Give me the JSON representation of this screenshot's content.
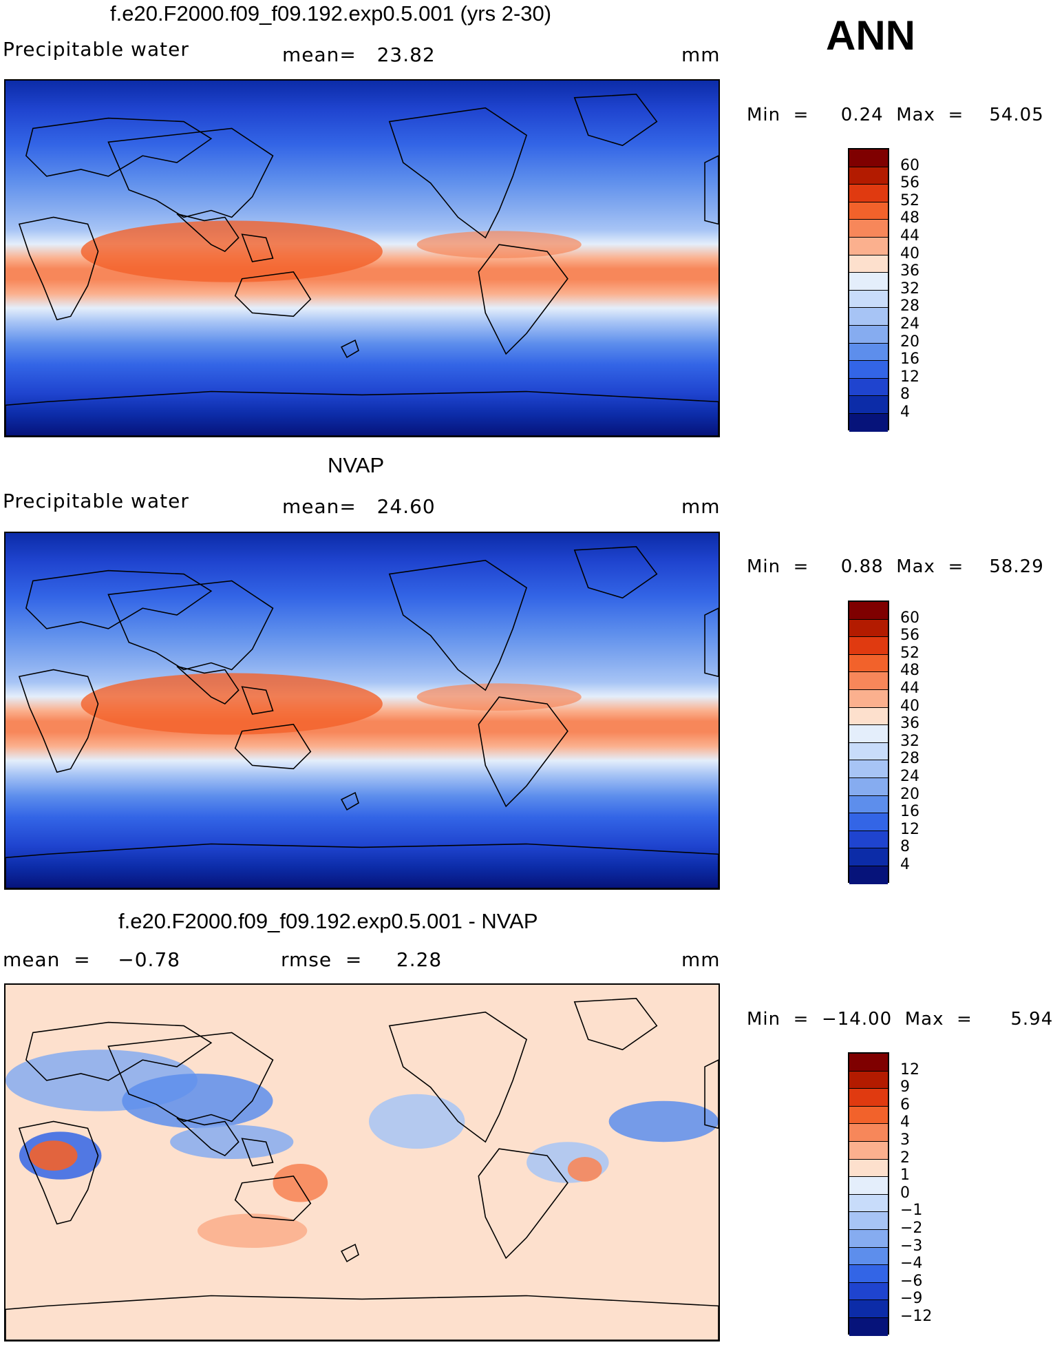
{
  "corner_label": "ANN",
  "panels": [
    {
      "title": "f.e20.F2000.f09_f09.192.exp0.5.001 (yrs 2-30)",
      "left_label": "Precipitable water",
      "center_label": "mean=   23.82",
      "units": "mm",
      "stats": "Min  =     0.24  Max  =    54.05",
      "map_kind": "field",
      "colorbar_labels": [
        "60",
        "56",
        "52",
        "48",
        "44",
        "40",
        "36",
        "32",
        "28",
        "24",
        "20",
        "16",
        "12",
        "8",
        "4"
      ],
      "colorbar_colors": [
        "#7f0000",
        "#b31b00",
        "#e03a10",
        "#f2622b",
        "#f7875a",
        "#fbb08e",
        "#fde0cd",
        "#e4eefb",
        "#c8dcfa",
        "#a7c4f5",
        "#86acf0",
        "#5d8eec",
        "#3365e6",
        "#1f44cf",
        "#0c2ca8",
        "#06137a"
      ]
    },
    {
      "title": "NVAP",
      "left_label": "Precipitable water",
      "center_label": "mean=   24.60",
      "units": "mm",
      "stats": "Min  =     0.88  Max  =    58.29",
      "map_kind": "field",
      "colorbar_labels": [
        "60",
        "56",
        "52",
        "48",
        "44",
        "40",
        "36",
        "32",
        "28",
        "24",
        "20",
        "16",
        "12",
        "8",
        "4"
      ],
      "colorbar_colors": [
        "#7f0000",
        "#b31b00",
        "#e03a10",
        "#f2622b",
        "#f7875a",
        "#fbb08e",
        "#fde0cd",
        "#e4eefb",
        "#c8dcfa",
        "#a7c4f5",
        "#86acf0",
        "#5d8eec",
        "#3365e6",
        "#1f44cf",
        "#0c2ca8",
        "#06137a"
      ]
    },
    {
      "title": "f.e20.F2000.f09_f09.192.exp0.5.001 - NVAP",
      "left_label": "mean  =    −0.78",
      "center_label": "rmse  =     2.28",
      "units": "mm",
      "stats": "Min  =  −14.00  Max  =      5.94",
      "map_kind": "diff",
      "colorbar_labels": [
        "12",
        "9",
        "6",
        "4",
        "3",
        "2",
        "1",
        "0",
        "−1",
        "−2",
        "−3",
        "−4",
        "−6",
        "−9",
        "−12"
      ],
      "colorbar_colors": [
        "#7f0000",
        "#b31b00",
        "#e03a10",
        "#f2622b",
        "#f7875a",
        "#fbb08e",
        "#fde0cd",
        "#e4eefb",
        "#c8dcfa",
        "#a7c4f5",
        "#86acf0",
        "#5d8eec",
        "#3365e6",
        "#1f44cf",
        "#0c2ca8",
        "#06137a"
      ]
    }
  ]
}
